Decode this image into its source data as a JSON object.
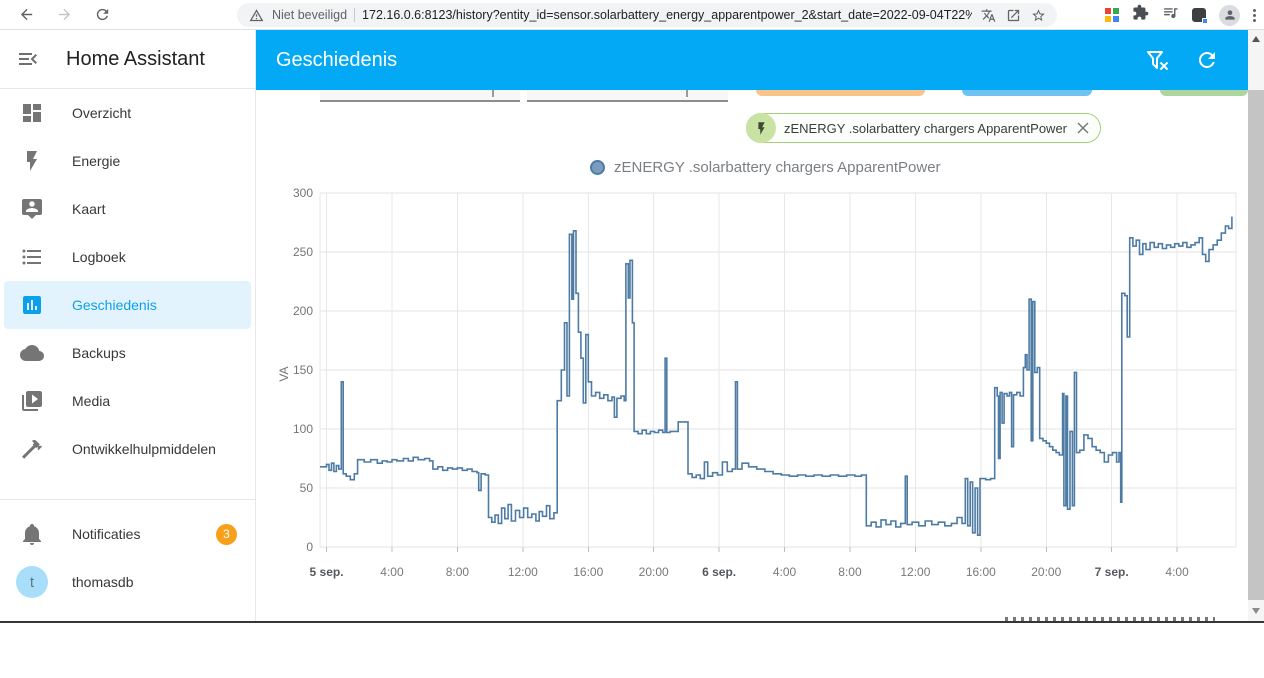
{
  "browser": {
    "security_label": "Niet beveiligd",
    "url": "172.16.0.6:8123/history?entity_id=sensor.solarbattery_energy_apparentpower_2&start_date=2022-09-04T22%3A0..."
  },
  "sidebar": {
    "title": "Home Assistant",
    "items": [
      {
        "label": "Overzicht",
        "icon": "view-dashboard"
      },
      {
        "label": "Energie",
        "icon": "lightning-bolt"
      },
      {
        "label": "Kaart",
        "icon": "tooltip-account"
      },
      {
        "label": "Logboek",
        "icon": "format-list-bulleted"
      },
      {
        "label": "Geschiedenis",
        "icon": "chart-box",
        "selected": true
      },
      {
        "label": "Backups",
        "icon": "cloud"
      },
      {
        "label": "Media",
        "icon": "play-box-multiple"
      },
      {
        "label": "Ontwikkelhulpmiddelen",
        "icon": "hammer"
      }
    ],
    "notifications": {
      "label": "Notificaties",
      "badge": "3"
    },
    "user": {
      "name": "thomasdb",
      "initial": "t"
    }
  },
  "header": {
    "title": "Geschiedenis"
  },
  "period_chips": [
    {
      "color": "#f8c489"
    },
    {
      "color": "#6fc3f3"
    },
    {
      "color": "#aed79f"
    }
  ],
  "entity_chip": {
    "label": "zENERGY .solarbattery chargers ApparentPower"
  },
  "colors": {
    "primary": "#03a9f4",
    "line": "#4d7ba4",
    "badge": "#f9a01b",
    "selected_bg": "#e2f3fd"
  },
  "chart_data": {
    "type": "line",
    "step": "after",
    "title": "zENERGY .solarbattery chargers ApparentPower",
    "ylabel": "VA",
    "unit": "VA",
    "ylim": [
      0,
      300
    ],
    "yticks": [
      0,
      50,
      100,
      150,
      200,
      250,
      300
    ],
    "grid": true,
    "legend_position": "top-center",
    "line_color": "#4d7ba4",
    "x_unit": "hours since 5 sep. 00:00",
    "xdomain": [
      -0.4,
      55.6
    ],
    "xticks": [
      {
        "t": 0,
        "label": "5 sep.",
        "bold": true
      },
      {
        "t": 4,
        "label": "4:00"
      },
      {
        "t": 8,
        "label": "8:00"
      },
      {
        "t": 12,
        "label": "12:00"
      },
      {
        "t": 16,
        "label": "16:00"
      },
      {
        "t": 20,
        "label": "20:00"
      },
      {
        "t": 24,
        "label": "6 sep.",
        "bold": true
      },
      {
        "t": 28,
        "label": "4:00"
      },
      {
        "t": 32,
        "label": "8:00"
      },
      {
        "t": 36,
        "label": "12:00"
      },
      {
        "t": 40,
        "label": "16:00"
      },
      {
        "t": 44,
        "label": "20:00"
      },
      {
        "t": 48,
        "label": "7 sep.",
        "bold": true
      },
      {
        "t": 52,
        "label": "4:00"
      }
    ],
    "series": [
      {
        "name": "zENERGY .solarbattery chargers ApparentPower",
        "points": [
          [
            -0.4,
            68
          ],
          [
            0,
            70
          ],
          [
            0.15,
            65
          ],
          [
            0.3,
            71
          ],
          [
            0.45,
            64
          ],
          [
            0.6,
            69
          ],
          [
            0.75,
            66
          ],
          [
            0.9,
            140
          ],
          [
            1.02,
            62
          ],
          [
            1.2,
            60
          ],
          [
            1.45,
            57
          ],
          [
            1.7,
            62
          ],
          [
            1.9,
            74
          ],
          [
            2.3,
            72
          ],
          [
            2.7,
            74
          ],
          [
            3.1,
            71
          ],
          [
            3.4,
            73
          ],
          [
            3.7,
            72
          ],
          [
            4,
            74
          ],
          [
            4.3,
            73
          ],
          [
            4.7,
            75
          ],
          [
            5,
            73
          ],
          [
            5.3,
            76
          ],
          [
            5.6,
            74
          ],
          [
            6,
            75
          ],
          [
            6.3,
            73
          ],
          [
            6.5,
            66
          ],
          [
            6.8,
            68
          ],
          [
            7.1,
            65
          ],
          [
            7.4,
            67
          ],
          [
            7.7,
            66
          ],
          [
            8,
            67
          ],
          [
            8.3,
            65
          ],
          [
            8.6,
            66
          ],
          [
            8.9,
            64
          ],
          [
            9.2,
            63
          ],
          [
            9.3,
            48
          ],
          [
            9.45,
            62
          ],
          [
            9.7,
            61
          ],
          [
            9.9,
            25
          ],
          [
            10.1,
            21
          ],
          [
            10.3,
            27
          ],
          [
            10.5,
            20
          ],
          [
            10.7,
            33
          ],
          [
            10.9,
            24
          ],
          [
            11.1,
            36
          ],
          [
            11.3,
            22
          ],
          [
            11.55,
            31
          ],
          [
            11.8,
            25
          ],
          [
            12.05,
            33
          ],
          [
            12.3,
            25
          ],
          [
            12.55,
            28
          ],
          [
            12.8,
            22
          ],
          [
            13,
            30
          ],
          [
            13.2,
            26
          ],
          [
            13.45,
            35
          ],
          [
            13.65,
            24
          ],
          [
            13.9,
            29
          ],
          [
            14.1,
            124
          ],
          [
            14.35,
            150
          ],
          [
            14.55,
            190
          ],
          [
            14.7,
            128
          ],
          [
            14.85,
            265
          ],
          [
            15,
            210
          ],
          [
            15.1,
            268
          ],
          [
            15.25,
            215
          ],
          [
            15.4,
            182
          ],
          [
            15.55,
            160
          ],
          [
            15.7,
            122
          ],
          [
            15.85,
            180
          ],
          [
            16,
            140
          ],
          [
            16.2,
            128
          ],
          [
            16.45,
            131
          ],
          [
            16.7,
            126
          ],
          [
            16.95,
            129
          ],
          [
            17.2,
            124
          ],
          [
            17.45,
            127
          ],
          [
            17.6,
            110
          ],
          [
            17.75,
            126
          ],
          [
            18,
            128
          ],
          [
            18.2,
            124
          ],
          [
            18.3,
            240
          ],
          [
            18.45,
            211
          ],
          [
            18.55,
            243
          ],
          [
            18.7,
            190
          ],
          [
            18.8,
            98
          ],
          [
            19.05,
            96
          ],
          [
            19.3,
            99
          ],
          [
            19.55,
            96
          ],
          [
            19.8,
            98
          ],
          [
            20.05,
            97
          ],
          [
            20.3,
            99
          ],
          [
            20.55,
            97
          ],
          [
            20.7,
            160
          ],
          [
            20.8,
            97
          ],
          [
            21,
            98
          ],
          [
            21.5,
            106
          ],
          [
            22.1,
            62
          ],
          [
            22.35,
            59
          ],
          [
            22.6,
            61
          ],
          [
            22.85,
            58
          ],
          [
            23.1,
            72
          ],
          [
            23.3,
            60
          ],
          [
            23.6,
            63
          ],
          [
            23.9,
            61
          ],
          [
            24.2,
            72
          ],
          [
            24.5,
            64
          ],
          [
            24.8,
            66
          ],
          [
            25,
            140
          ],
          [
            25.12,
            66
          ],
          [
            25.4,
            71
          ],
          [
            25.8,
            68
          ],
          [
            26.3,
            66
          ],
          [
            26.8,
            64
          ],
          [
            27.3,
            62
          ],
          [
            27.8,
            61
          ],
          [
            28.3,
            60
          ],
          [
            28.8,
            61
          ],
          [
            29.3,
            60
          ],
          [
            29.8,
            61
          ],
          [
            30.3,
            60
          ],
          [
            30.8,
            61
          ],
          [
            31.3,
            60
          ],
          [
            31.8,
            61
          ],
          [
            32.3,
            60
          ],
          [
            32.7,
            61
          ],
          [
            33,
            18
          ],
          [
            33.3,
            21
          ],
          [
            33.6,
            17
          ],
          [
            33.9,
            23
          ],
          [
            34.2,
            19
          ],
          [
            34.5,
            22
          ],
          [
            34.8,
            17
          ],
          [
            35.1,
            20
          ],
          [
            35.38,
            60
          ],
          [
            35.5,
            19
          ],
          [
            35.8,
            21
          ],
          [
            36.2,
            18
          ],
          [
            36.6,
            22
          ],
          [
            37,
            19
          ],
          [
            37.4,
            21
          ],
          [
            37.8,
            18
          ],
          [
            38.2,
            20
          ],
          [
            38.55,
            25
          ],
          [
            38.85,
            20
          ],
          [
            39.05,
            58
          ],
          [
            39.2,
            18
          ],
          [
            39.35,
            55
          ],
          [
            39.5,
            12
          ],
          [
            39.65,
            50
          ],
          [
            39.8,
            10
          ],
          [
            39.95,
            58
          ],
          [
            40.3,
            57
          ],
          [
            40.6,
            58
          ],
          [
            40.85,
            135
          ],
          [
            41,
            128
          ],
          [
            41.08,
            75
          ],
          [
            41.18,
            131
          ],
          [
            41.3,
            105
          ],
          [
            41.42,
            130
          ],
          [
            41.6,
            128
          ],
          [
            41.75,
            131
          ],
          [
            41.88,
            85
          ],
          [
            42,
            129
          ],
          [
            42.2,
            131
          ],
          [
            42.4,
            128
          ],
          [
            42.6,
            152
          ],
          [
            42.72,
            163
          ],
          [
            42.82,
            150
          ],
          [
            42.95,
            210
          ],
          [
            43.08,
            90
          ],
          [
            43.18,
            208
          ],
          [
            43.3,
            148
          ],
          [
            43.45,
            152
          ],
          [
            43.6,
            92
          ],
          [
            43.8,
            90
          ],
          [
            44,
            88
          ],
          [
            44.2,
            85
          ],
          [
            44.4,
            82
          ],
          [
            44.6,
            80
          ],
          [
            44.8,
            78
          ],
          [
            45,
            130
          ],
          [
            45.08,
            35
          ],
          [
            45.2,
            128
          ],
          [
            45.3,
            32
          ],
          [
            45.45,
            98
          ],
          [
            45.6,
            35
          ],
          [
            45.72,
            148
          ],
          [
            45.85,
            80
          ],
          [
            46.05,
            82
          ],
          [
            46.3,
            95
          ],
          [
            46.55,
            92
          ],
          [
            46.8,
            85
          ],
          [
            47.05,
            82
          ],
          [
            47.3,
            80
          ],
          [
            47.55,
            72
          ],
          [
            47.8,
            78
          ],
          [
            48.05,
            80
          ],
          [
            48.3,
            72
          ],
          [
            48.45,
            80
          ],
          [
            48.55,
            38
          ],
          [
            48.62,
            215
          ],
          [
            48.8,
            213
          ],
          [
            48.95,
            178
          ],
          [
            49.1,
            262
          ],
          [
            49.3,
            255
          ],
          [
            49.5,
            260
          ],
          [
            49.7,
            248
          ],
          [
            49.9,
            257
          ],
          [
            50.1,
            252
          ],
          [
            50.35,
            258
          ],
          [
            50.6,
            254
          ],
          [
            50.85,
            257
          ],
          [
            51.1,
            253
          ],
          [
            51.35,
            256
          ],
          [
            51.6,
            254
          ],
          [
            51.85,
            257
          ],
          [
            52.1,
            255
          ],
          [
            52.35,
            258
          ],
          [
            52.6,
            254
          ],
          [
            52.85,
            256
          ],
          [
            53.1,
            258
          ],
          [
            53.35,
            262
          ],
          [
            53.55,
            248
          ],
          [
            53.75,
            242
          ],
          [
            53.95,
            252
          ],
          [
            54.2,
            256
          ],
          [
            54.45,
            260
          ],
          [
            54.7,
            266
          ],
          [
            54.95,
            272
          ],
          [
            55.15,
            270
          ],
          [
            55.35,
            280
          ]
        ]
      }
    ]
  }
}
